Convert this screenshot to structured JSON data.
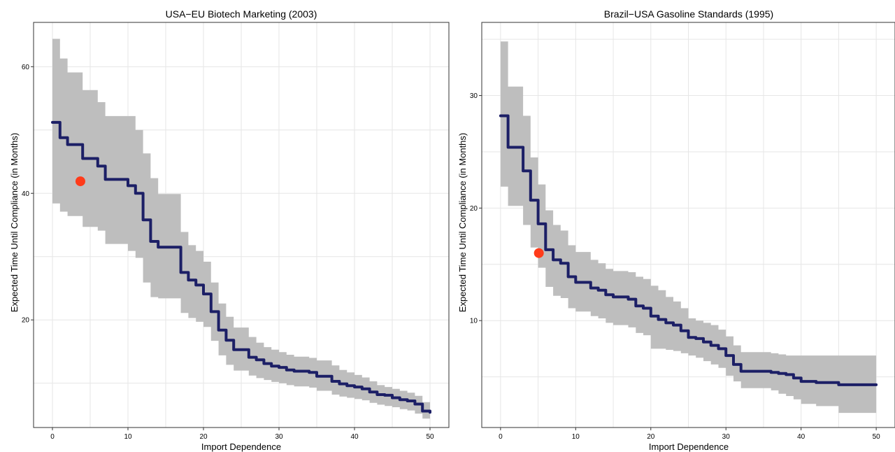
{
  "colors": {
    "ribbon": "#bebebe",
    "line": "#1c1f66",
    "point": "#ff3b1a",
    "grid": "#e6e6e6"
  },
  "chart_data": [
    {
      "type": "line",
      "title": "USA−EU Biotech Marketing (2003)",
      "xlabel": "Import Dependence",
      "ylabel": "Expected Time Until Compliance (in Months)",
      "xlim": [
        -2.5,
        52.5
      ],
      "ylim": [
        3,
        67
      ],
      "xticks": [
        0,
        10,
        20,
        30,
        40,
        50
      ],
      "yticks": [
        20,
        40,
        60
      ],
      "grid": true,
      "series": [
        {
          "kind": "step-line",
          "x": [
            0,
            1,
            2,
            3,
            4,
            5,
            6,
            7,
            8,
            9,
            10,
            11,
            12,
            13,
            14,
            15,
            16,
            17,
            18,
            19,
            20,
            21,
            22,
            23,
            24,
            25,
            26,
            27,
            28,
            29,
            30,
            31,
            32,
            33,
            34,
            35,
            36,
            37,
            38,
            39,
            40,
            41,
            42,
            43,
            44,
            45,
            46,
            47,
            48,
            49,
            50
          ],
          "y": [
            51.2,
            48.8,
            47.7,
            47.7,
            45.5,
            45.5,
            44.3,
            42.2,
            42.2,
            42.2,
            41.2,
            40,
            35.8,
            32.4,
            31.5,
            31.5,
            31.5,
            27.5,
            26.3,
            25.5,
            24.1,
            21.3,
            18.4,
            16.8,
            15.3,
            15.3,
            14.1,
            13.7,
            13.1,
            12.7,
            12.5,
            12.1,
            11.9,
            11.9,
            11.7,
            11.1,
            11.1,
            10.3,
            9.9,
            9.6,
            9.4,
            9.1,
            8.6,
            8.2,
            8.1,
            7.7,
            7.4,
            7.2,
            6.7,
            5.6,
            5.4
          ]
        },
        {
          "kind": "ribbon",
          "x": [
            0,
            1,
            2,
            3,
            4,
            5,
            6,
            7,
            8,
            9,
            10,
            11,
            12,
            13,
            14,
            15,
            16,
            17,
            18,
            19,
            20,
            21,
            22,
            23,
            24,
            25,
            26,
            27,
            28,
            29,
            30,
            31,
            32,
            33,
            34,
            35,
            36,
            37,
            38,
            39,
            40,
            41,
            42,
            43,
            44,
            45,
            46,
            47,
            48,
            49,
            50
          ],
          "lower": [
            38.4,
            37.1,
            36.4,
            36.4,
            34.7,
            34.7,
            34.1,
            32,
            32,
            32,
            30.9,
            29.8,
            25.9,
            23.6,
            23.4,
            23.4,
            23.4,
            21.1,
            20.3,
            19.7,
            18.9,
            16.7,
            14.4,
            12.9,
            12,
            12,
            11.2,
            10.8,
            10.5,
            10.2,
            10,
            9.7,
            9.5,
            9.5,
            9.3,
            8.8,
            8.8,
            8.2,
            7.9,
            7.7,
            7.5,
            7.3,
            6.9,
            6.6,
            6.4,
            6.2,
            5.9,
            5.7,
            5.2,
            4.4,
            4.2
          ],
          "upper": [
            64.4,
            61.3,
            59.1,
            59.1,
            56.3,
            56.3,
            54.4,
            52.2,
            52.2,
            52.2,
            52.2,
            50,
            46.3,
            42.4,
            39.9,
            39.9,
            39.9,
            33.9,
            31.8,
            30.9,
            29.2,
            25.9,
            22.6,
            20.5,
            18.8,
            18.8,
            17.3,
            16.4,
            15.7,
            15.3,
            14.9,
            14.5,
            14.2,
            14.2,
            14,
            13.6,
            13.6,
            12.8,
            12.1,
            11.7,
            11.3,
            10.9,
            10.3,
            9.7,
            9.4,
            9.1,
            8.8,
            8.5,
            8,
            7,
            6.8
          ]
        },
        {
          "kind": "point",
          "x": [
            3.7
          ],
          "y": [
            41.9
          ]
        }
      ]
    },
    {
      "type": "line",
      "title": "Brazil−USA Gasoline Standards (1995)",
      "xlabel": "Import Dependence",
      "ylabel": "Expected Time Until Compliance (in Months)",
      "xlim": [
        -2.5,
        52.5
      ],
      "ylim": [
        0.5,
        36.5
      ],
      "xticks": [
        0,
        10,
        20,
        30,
        40,
        50
      ],
      "yticks": [
        10,
        20,
        30
      ],
      "grid": true,
      "series": [
        {
          "kind": "step-line",
          "x": [
            0,
            1,
            2,
            3,
            4,
            5,
            6,
            7,
            8,
            9,
            10,
            11,
            12,
            13,
            14,
            15,
            16,
            17,
            18,
            19,
            20,
            21,
            22,
            23,
            24,
            25,
            26,
            27,
            28,
            29,
            30,
            31,
            32,
            33,
            34,
            35,
            36,
            37,
            38,
            39,
            40,
            41,
            42,
            43,
            44,
            45,
            46,
            47,
            48,
            49,
            50
          ],
          "y": [
            28.2,
            25.4,
            25.4,
            23.3,
            20.7,
            18.6,
            16.3,
            15.4,
            15.1,
            13.9,
            13.4,
            13.4,
            12.9,
            12.7,
            12.3,
            12.1,
            12.1,
            11.9,
            11.3,
            11.1,
            10.4,
            10.1,
            9.8,
            9.6,
            9.1,
            8.5,
            8.4,
            8.1,
            7.8,
            7.5,
            6.9,
            6.1,
            5.5,
            5.5,
            5.5,
            5.5,
            5.4,
            5.3,
            5.2,
            4.9,
            4.6,
            4.6,
            4.5,
            4.5,
            4.5,
            4.3,
            4.3,
            4.3,
            4.3,
            4.3,
            4.3
          ]
        },
        {
          "kind": "ribbon",
          "x": [
            0,
            1,
            2,
            3,
            4,
            5,
            6,
            7,
            8,
            9,
            10,
            11,
            12,
            13,
            14,
            15,
            16,
            17,
            18,
            19,
            20,
            21,
            22,
            23,
            24,
            25,
            26,
            27,
            28,
            29,
            30,
            31,
            32,
            33,
            34,
            35,
            36,
            37,
            38,
            39,
            40,
            41,
            42,
            43,
            44,
            45,
            46,
            47,
            48,
            49,
            50
          ],
          "lower": [
            21.9,
            20.2,
            20.2,
            18.5,
            16.5,
            14.7,
            13,
            12.2,
            12,
            11.1,
            10.8,
            10.8,
            10.4,
            10.2,
            9.8,
            9.6,
            9.6,
            9.4,
            8.9,
            8.7,
            7.5,
            7.5,
            7.4,
            7.3,
            7.1,
            6.9,
            6.7,
            6.4,
            6.1,
            5.8,
            5.1,
            4.6,
            4,
            4,
            4,
            4,
            3.8,
            3.5,
            3.3,
            3,
            2.6,
            2.6,
            2.4,
            2.4,
            2.4,
            1.8,
            1.8,
            1.8,
            1.8,
            1.8,
            1.8
          ],
          "upper": [
            34.8,
            30.8,
            30.8,
            28.2,
            24.5,
            22.1,
            19.8,
            18.5,
            18,
            16.7,
            16.1,
            16.1,
            15.4,
            15.1,
            14.6,
            14.4,
            14.4,
            14.3,
            13.9,
            13.7,
            13.1,
            12.7,
            12.1,
            11.7,
            11.1,
            10.2,
            10,
            9.8,
            9.6,
            9.2,
            8.6,
            7.8,
            7.2,
            7.2,
            7.2,
            7.2,
            7.1,
            7,
            6.9,
            6.9,
            6.9,
            6.9,
            6.9,
            6.9,
            6.9,
            6.9,
            6.9,
            6.9,
            6.9,
            6.9,
            6.9
          ]
        },
        {
          "kind": "point",
          "x": [
            5.1
          ],
          "y": [
            16
          ]
        }
      ]
    }
  ]
}
